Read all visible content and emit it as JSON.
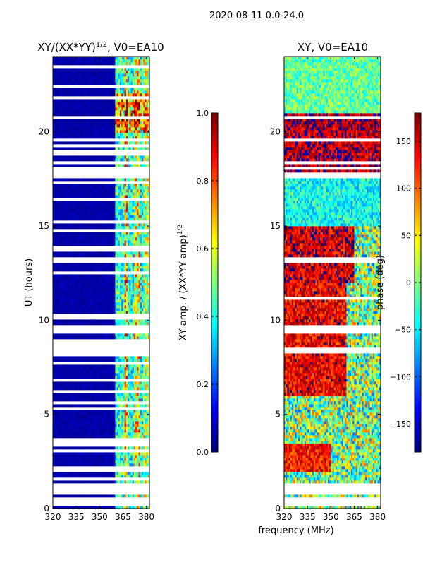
{
  "figure": {
    "suptitle": "2020-08-11 0.0-24.0",
    "shared_xlabel": "frequency (MHz)"
  },
  "colormap": "jet",
  "chart_data": [
    {
      "type": "heatmap",
      "title_main": "XY/(XX*YY)",
      "title_sup": "1/2",
      "title_tail": ", V0=EA10",
      "xlabel": "",
      "ylabel": "UT (hours)",
      "xlim": [
        320,
        382
      ],
      "ylim": [
        0,
        24
      ],
      "xticks": [
        320,
        335,
        350,
        365,
        380
      ],
      "yticks": [
        0,
        5,
        10,
        15,
        20
      ],
      "colorbar": {
        "label_main": "XY amp. / (XX*YY amp)",
        "label_sup": "1/2",
        "range": [
          0,
          1
        ],
        "ticks": [
          0.0,
          0.2,
          0.4,
          0.6,
          0.8,
          1.0
        ]
      },
      "blank_rows_ut": [
        0.3,
        0.5,
        0.9,
        1.2,
        1.6,
        2.0,
        2.2,
        3.1,
        3.4,
        3.6,
        5.3,
        5.6,
        6.2,
        6.8,
        7.7,
        8.2,
        8.4,
        8.7,
        8.9,
        9.4,
        9.6,
        10.2,
        12.5,
        13.2,
        13.8,
        14.8,
        15.2,
        16.4,
        17.3,
        17.7,
        17.9,
        18.1,
        18.4,
        18.9,
        19.3,
        19.6,
        20.8,
        21.8,
        22.4,
        23.5
      ],
      "bands_mhz": [
        [
          360,
          366,
          0.42
        ],
        [
          366,
          368,
          0.68
        ],
        [
          368,
          372,
          0.4
        ],
        [
          372,
          376,
          0.62
        ],
        [
          376,
          378,
          0.38
        ],
        [
          378,
          382,
          0.55
        ]
      ]
    },
    {
      "type": "heatmap",
      "title_main": "XY, V0=EA10",
      "xlabel": "frequency (MHz)",
      "ylabel": "",
      "xlim": [
        320,
        382
      ],
      "ylim": [
        0,
        24
      ],
      "xticks": [
        320,
        335,
        350,
        365,
        380
      ],
      "yticks": [
        0,
        5,
        10,
        15,
        20
      ],
      "colorbar": {
        "label_main": "phase (deg)",
        "range": [
          -180,
          180
        ],
        "ticks": [
          -150,
          -100,
          -50,
          0,
          50,
          100,
          150
        ]
      },
      "blank_rows_ut": [
        0.3,
        0.5,
        0.9,
        1.2,
        8.4,
        9.4,
        9.6,
        11.2,
        13.2,
        17.7,
        18.1,
        18.4,
        19.6,
        20.8
      ],
      "phase_regions": [
        {
          "ut": [
            2.0,
            3.5
          ],
          "mhz": [
            320,
            350
          ],
          "deg": 130
        },
        {
          "ut": [
            6.0,
            12.0
          ],
          "mhz": [
            320,
            360
          ],
          "deg": 140
        },
        {
          "ut": [
            12.0,
            15.0
          ],
          "mhz": [
            320,
            365
          ],
          "deg": 150
        },
        {
          "ut": [
            15.0,
            17.5
          ],
          "mhz": [
            320,
            382
          ],
          "deg": -40
        },
        {
          "ut": [
            17.5,
            21.0
          ],
          "mhz": [
            320,
            382
          ],
          "deg": 160
        },
        {
          "ut": [
            21.0,
            24.0
          ],
          "mhz": [
            320,
            382
          ],
          "deg": -10
        }
      ]
    }
  ]
}
